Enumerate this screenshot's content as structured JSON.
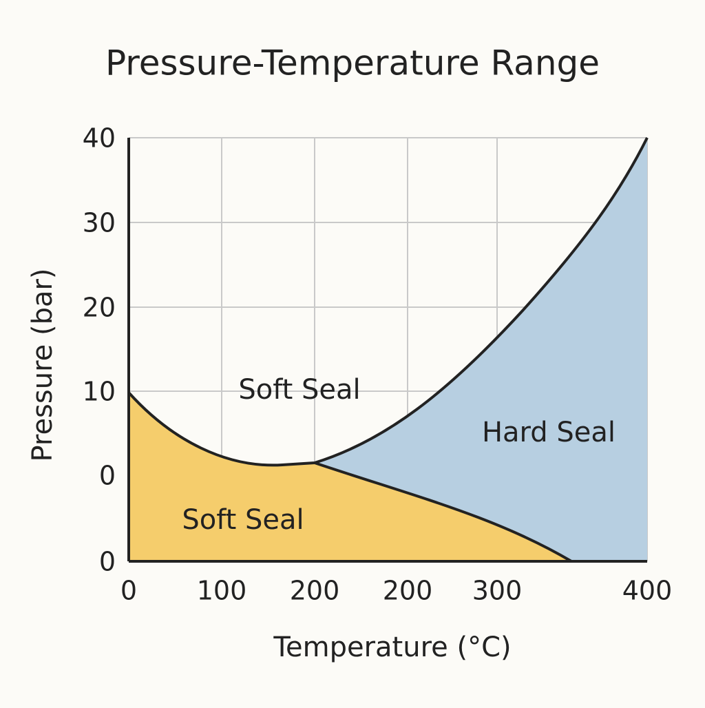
{
  "chart_data": {
    "type": "area",
    "title": "Pressure-Temperature Range",
    "x_label": "Temperature (°C)",
    "y_label": "Pressure (bar)",
    "x_tick_labels": [
      "0",
      "100",
      "200",
      "200",
      "300",
      "400"
    ],
    "y_tick_labels": [
      "40",
      "30",
      "20",
      "10",
      "0",
      "0"
    ],
    "region_labels": [
      "Soft Seal",
      "Soft Seal",
      "Hard Seal"
    ],
    "colors": {
      "soft": "#f5cd6c",
      "hard": "#b7cfe1"
    },
    "grid": true
  }
}
